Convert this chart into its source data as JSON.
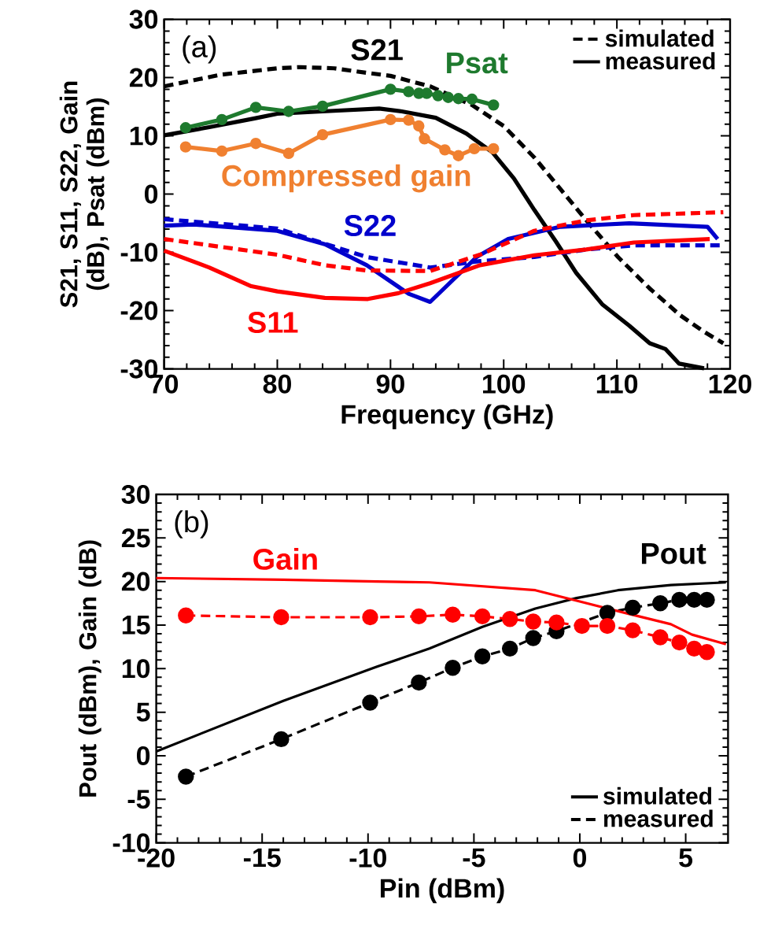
{
  "chart_data": [
    {
      "type": "line",
      "xlabel": "Frequency (GHz)",
      "ylabel": "S21, S11, S22, Gain (dB), Psat (dBm)",
      "annotations": [
        "(a)",
        "S21",
        "Psat",
        "Compressed gain",
        "S22",
        "S11"
      ],
      "xlim": [
        70,
        120
      ],
      "xticks": [
        70,
        80,
        90,
        100,
        110,
        120
      ],
      "ylim": [
        -30,
        30
      ],
      "yticks": [
        -30,
        -20,
        -10,
        0,
        10,
        20,
        30
      ],
      "legend": "top right",
      "series": [
        {
          "name": "simulated",
          "color": "#000000",
          "line_style": "dashed",
          "x": [
            70,
            75,
            80,
            82,
            85,
            88,
            90,
            93.5,
            97.2,
            100,
            102.7,
            105,
            107.3,
            110.1,
            112.9,
            115.6,
            117.6,
            119.4
          ],
          "values": [
            18.5,
            20.5,
            21.6,
            21.8,
            21.6,
            20.8,
            20.3,
            18.5,
            15.3,
            11.7,
            6.3,
            0.9,
            -4.5,
            -10.8,
            -16.2,
            -20.8,
            -23.5,
            -25.6
          ]
        },
        {
          "name": "measured",
          "color": "#000000",
          "line_style": "solid",
          "x": [
            70,
            74,
            78,
            80,
            85,
            89,
            91,
            94,
            96.7,
            99,
            100.9,
            102.7,
            104.6,
            106.4,
            108.7,
            111.1,
            112.9,
            114.3,
            115.5,
            117.7
          ],
          "values": [
            10.1,
            11.5,
            13,
            13.8,
            14.3,
            14.7,
            14.2,
            13.1,
            10.4,
            7.2,
            2.7,
            -2.7,
            -8.1,
            -13.5,
            -18.9,
            -22.6,
            -25.6,
            -26.6,
            -29.1,
            -29.9
          ]
        },
        {
          "color": "#0000cc",
          "line_style": "solid",
          "x": [
            70,
            72.6,
            80,
            84.2,
            87.9,
            91.6,
            93.5,
            97.6,
            100.4,
            105,
            111.1,
            115.7,
            118,
            118.9
          ],
          "values": [
            -5.4,
            -5.2,
            -6.3,
            -8.6,
            -12.2,
            -17.1,
            -18.5,
            -10.8,
            -7.7,
            -5.6,
            -5.0,
            -5.4,
            -5.6,
            -7.7
          ]
        },
        {
          "color": "#0000cc",
          "line_style": "dashed",
          "x": [
            70,
            80,
            87.9,
            93.5,
            97.9,
            102.7,
            107.3,
            111.5,
            119.4
          ],
          "values": [
            -4.3,
            -5.9,
            -10.8,
            -12.6,
            -11.5,
            -10.8,
            -9.5,
            -8.8,
            -8.8
          ]
        },
        {
          "color": "#ff0000",
          "line_style": "solid",
          "x": [
            70,
            74,
            77.7,
            80,
            84.2,
            88,
            90.7,
            93.5,
            97.9,
            102.7,
            107.3,
            111.5,
            118.2
          ],
          "values": [
            -9.7,
            -12.6,
            -15.8,
            -16.7,
            -17.8,
            -18,
            -17,
            -15.3,
            -12.2,
            -10.5,
            -9.5,
            -8.3,
            -7.7
          ]
        },
        {
          "color": "#ff0000",
          "line_style": "dashed",
          "x": [
            70,
            80,
            84.2,
            87.9,
            93.5,
            97.9,
            102.7,
            107.3,
            111.5,
            119.4
          ],
          "values": [
            -7.7,
            -10.4,
            -12.2,
            -13.1,
            -13.2,
            -10.4,
            -6.3,
            -4.5,
            -3.6,
            -3.1
          ]
        },
        {
          "color": "#1e7a2e",
          "line_style": "solid",
          "marker": "circle",
          "x": [
            71.9,
            75.1,
            78.1,
            81,
            84,
            90,
            91.6,
            92.5,
            93.2,
            94.2,
            95.1,
            96,
            97.2,
            99.1
          ],
          "values": [
            11.4,
            12.8,
            14.9,
            14.2,
            15.1,
            18,
            17.6,
            17.3,
            17.3,
            16.9,
            16.6,
            16.4,
            16.3,
            15.3
          ]
        },
        {
          "color": "#f08030",
          "line_style": "solid",
          "marker": "circle",
          "x": [
            71.9,
            75.1,
            78.1,
            81,
            84,
            90,
            91.6,
            92.5,
            93,
            94.8,
            96,
            97.4,
            99.1
          ],
          "values": [
            8.1,
            7.4,
            8.7,
            7.0,
            10.2,
            12.8,
            12.7,
            11.7,
            9.5,
            7.6,
            6.6,
            7.8,
            7.8
          ]
        }
      ]
    },
    {
      "type": "line",
      "xlabel": "Pin (dBm)",
      "ylabel": "Pout (dBm), Gain (dB)",
      "annotations": [
        "(b)",
        "Gain",
        "Pout"
      ],
      "xlim": [
        -20,
        7
      ],
      "xticks": [
        -20,
        -15,
        -10,
        -5,
        0,
        5
      ],
      "ylim": [
        -10,
        30
      ],
      "yticks": [
        -10,
        -5,
        0,
        5,
        10,
        15,
        20,
        25,
        30
      ],
      "legend": "bottom right",
      "series": [
        {
          "name": "simulated",
          "color": "#000000",
          "line_style": "solid",
          "x": [
            -20,
            -14,
            -9.6,
            -7.1,
            -4.6,
            -2.1,
            -0.15,
            1.8,
            4.3,
            6.9
          ],
          "values": [
            0.5,
            6.3,
            10.2,
            12.3,
            14.8,
            16.9,
            18.1,
            19.0,
            19.6,
            19.9
          ]
        },
        {
          "name": "measured",
          "color": "#000000",
          "line_style": "dashed",
          "marker": "circle",
          "x": [
            -18.6,
            -14.1,
            -9.9,
            -7.6,
            -6.0,
            -4.6,
            -3.3,
            -2.2,
            -1.1,
            0.1,
            1.3,
            2.5,
            3.8,
            4.7,
            5.4,
            6.0
          ],
          "values": [
            -2.4,
            1.9,
            6.1,
            8.4,
            10.1,
            11.4,
            12.3,
            13.5,
            14.3,
            null,
            16.4,
            17.0,
            17.5,
            17.9,
            17.9,
            17.9
          ]
        },
        {
          "color": "#ff0000",
          "line_style": "solid",
          "x": [
            -20,
            -14,
            -9.6,
            -7.1,
            -2.1,
            -0.15,
            2.3,
            4.3,
            5.3,
            6.9
          ],
          "values": [
            20.4,
            20.2,
            20.0,
            19.9,
            19.0,
            17.8,
            16.3,
            15.1,
            13.9,
            12.8
          ]
        },
        {
          "color": "#ff0000",
          "line_style": "dashed",
          "marker": "circle",
          "x": [
            -18.6,
            -14.1,
            -9.9,
            -7.6,
            -6.0,
            -4.6,
            -3.3,
            -2.2,
            -1.1,
            0.1,
            1.3,
            2.5,
            3.8,
            4.7,
            5.4,
            6.0
          ],
          "values": [
            16.1,
            15.9,
            15.9,
            16.0,
            16.2,
            16.0,
            15.7,
            15.4,
            15.3,
            14.9,
            14.9,
            14.4,
            13.6,
            13.0,
            12.3,
            11.9
          ]
        }
      ]
    }
  ]
}
